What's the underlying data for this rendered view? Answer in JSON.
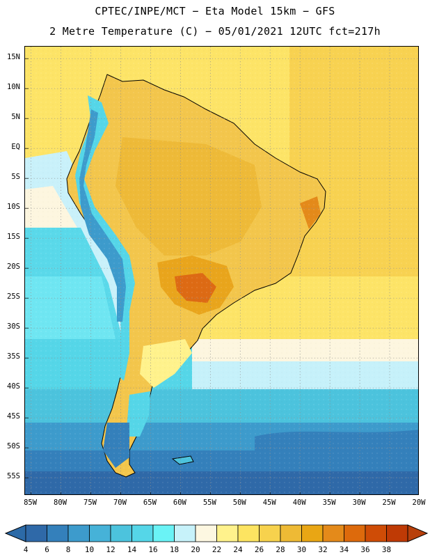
{
  "header": {
    "line1": "CPTEC/INPE/MCT −  Eta Model 15km − GFS",
    "line2": "2 Metre Temperature (C) − 05/01/2021 12UTC fct=217h"
  },
  "map": {
    "region": "South America",
    "variable": "2 Metre Temperature",
    "units": "C",
    "lat_range": [
      -58,
      17
    ],
    "lon_range": [
      -86,
      -20
    ],
    "lat_labels": [
      "15N",
      "10N",
      "5N",
      "EQ",
      "5S",
      "10S",
      "15S",
      "20S",
      "25S",
      "30S",
      "35S",
      "40S",
      "45S",
      "50S",
      "55S"
    ],
    "lon_labels": [
      "85W",
      "80W",
      "75W",
      "70W",
      "65W",
      "60W",
      "55W",
      "50W",
      "45W",
      "40W",
      "35W",
      "30W",
      "25W",
      "20W"
    ]
  },
  "colorbar": {
    "labels": [
      "4",
      "6",
      "8",
      "10",
      "12",
      "14",
      "16",
      "18",
      "20",
      "22",
      "24",
      "26",
      "28",
      "30",
      "32",
      "34",
      "36",
      "38"
    ],
    "under_color": "#2c6aa7",
    "over_color": "#b8400b",
    "colors": [
      "#2f69a8",
      "#3480bb",
      "#3d9bcc",
      "#46b2d8",
      "#4cc3dd",
      "#55d6e8",
      "#6af3f6",
      "#c7f2fa",
      "#fdf7e1",
      "#fff28c",
      "#fde461",
      "#f7d24d",
      "#eeba35",
      "#e9a614",
      "#e48a1a",
      "#dd6a0c",
      "#cf4c06",
      "#bf3a05"
    ]
  },
  "icons": {
    "left_arrow": "colorbar-under-arrow-icon",
    "right_arrow": "colorbar-over-arrow-icon"
  }
}
